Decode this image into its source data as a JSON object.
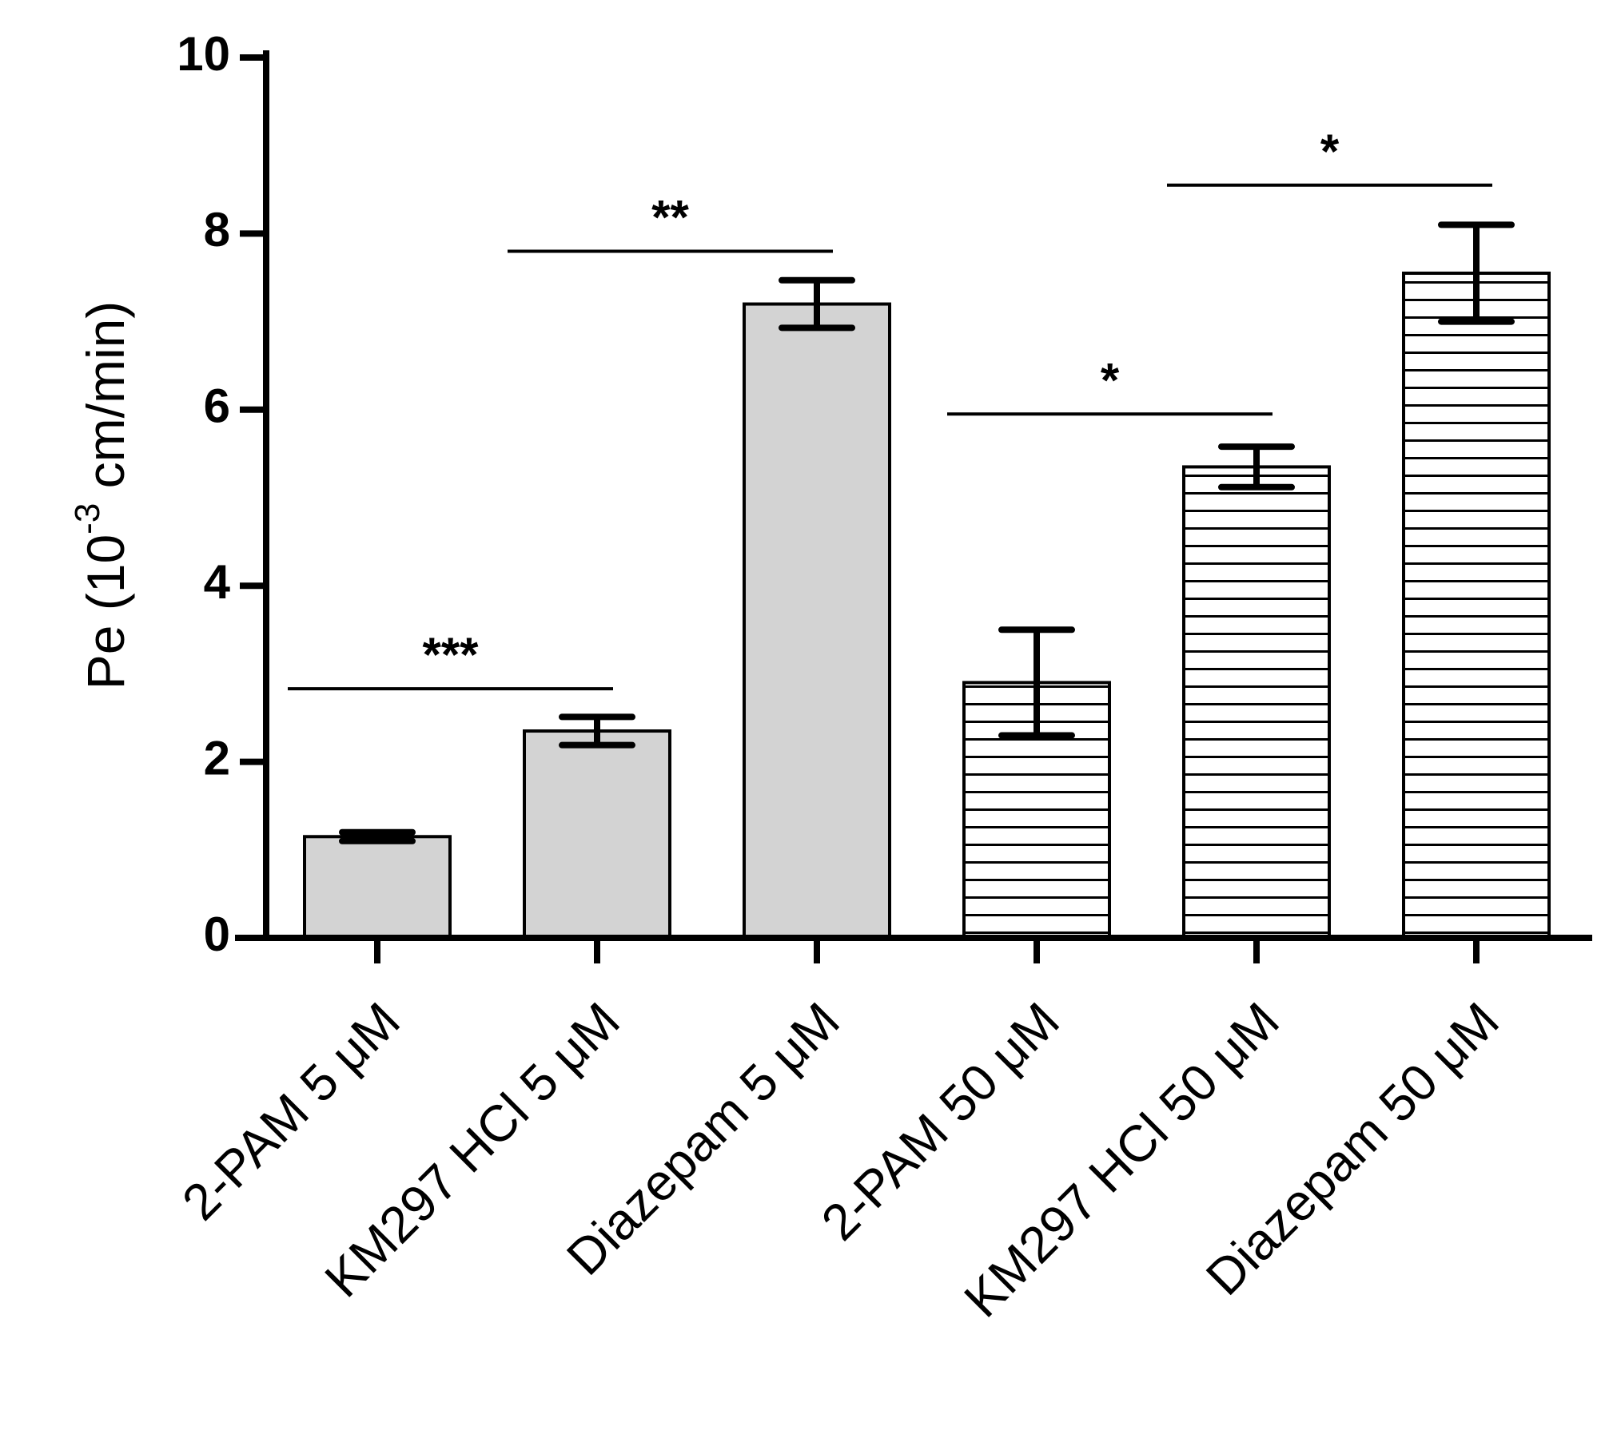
{
  "chart_data": {
    "type": "bar",
    "title": "",
    "xlabel": "",
    "ylabel": {
      "main": "Pe (10",
      "superscript": "-3",
      "unit": " cm/min)"
    },
    "ylim": [
      0,
      10
    ],
    "yticks": [
      "0",
      "2",
      "4",
      "6",
      "8",
      "10"
    ],
    "grid": false,
    "legend": "none",
    "categories": [
      "2-PAM 5 μM",
      "KM297 HCl 5 μM",
      "Diazepam 5 μM",
      "2-PAM 50 μM",
      "KM297 HCl 50 μM",
      "Diazepam 50 μM"
    ],
    "values": [
      1.15,
      2.35,
      7.2,
      2.9,
      5.35,
      7.55
    ],
    "errors": [
      0.05,
      0.16,
      0.27,
      0.6,
      0.23,
      0.55
    ],
    "fills": [
      "solid",
      "solid",
      "solid",
      "hatched",
      "hatched",
      "hatched"
    ],
    "colors": {
      "solid_fill": "#d3d3d3",
      "hatched_fill": "#ffffff",
      "stroke": "#000000"
    },
    "significance": [
      {
        "from": 0,
        "to": 1,
        "label": "***",
        "y": 2.83
      },
      {
        "from": 1,
        "to": 2,
        "label": "**",
        "y": 7.8
      },
      {
        "from": 3,
        "to": 4,
        "label": "*",
        "y": 5.95
      },
      {
        "from": 4,
        "to": 5,
        "label": "*",
        "y": 8.55
      }
    ]
  }
}
